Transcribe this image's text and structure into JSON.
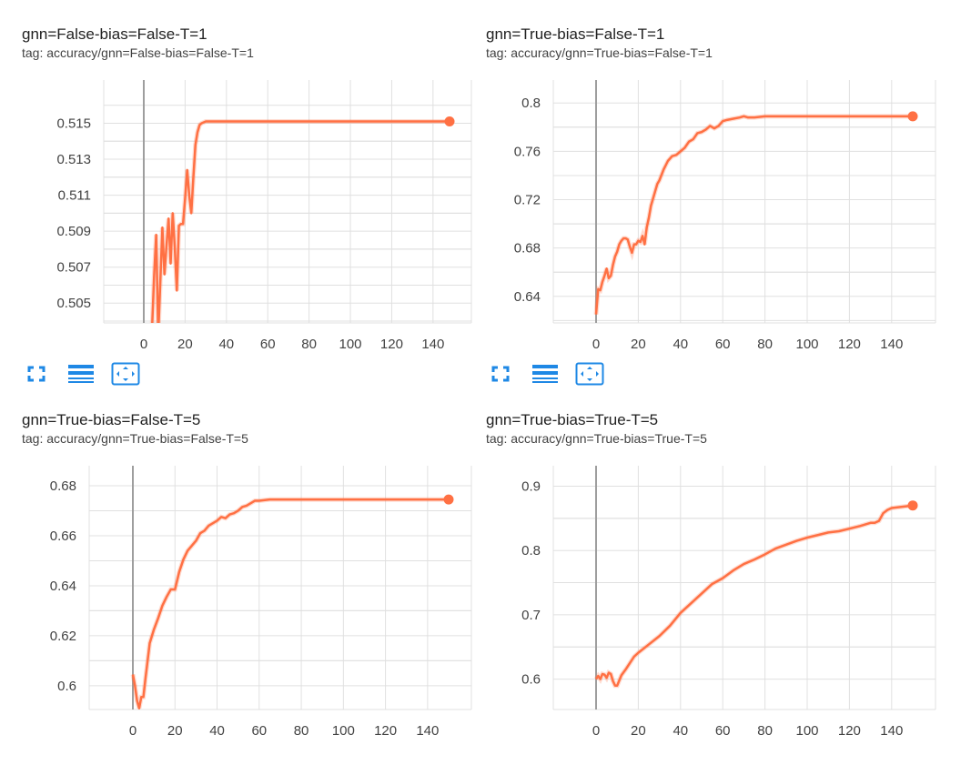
{
  "accent_color": "#ff7043",
  "cards": [
    {
      "title": "gnn=False-bias=False-T=1",
      "tag": "tag: accuracy/gnn=False-bias=False-T=1",
      "has_toolbar": true
    },
    {
      "title": "gnn=True-bias=False-T=1",
      "tag": "tag: accuracy/gnn=True-bias=False-T=1",
      "has_toolbar": true
    },
    {
      "title": "gnn=True-bias=False-T=5",
      "tag": "tag: accuracy/gnn=True-bias=False-T=5",
      "has_toolbar": false
    },
    {
      "title": "gnn=True-bias=True-T=5",
      "tag": "tag: accuracy/gnn=True-bias=True-T=5",
      "has_toolbar": false
    }
  ],
  "toolbar": {
    "icons": [
      "fullscreen-icon",
      "toggle-log-scale-icon",
      "fit-domain-icon"
    ]
  },
  "chart_data": [
    {
      "type": "line",
      "title": "gnn=False-bias=False-T=1",
      "xlim": [
        -20,
        160
      ],
      "ylim": [
        0.5039,
        0.5174
      ],
      "xticks": [
        0,
        20,
        40,
        60,
        80,
        100,
        120,
        140
      ],
      "xtick_labels": [
        "0",
        "20",
        "40",
        "60",
        "80",
        "100",
        "120",
        "140"
      ],
      "yticks": [
        0.505,
        0.507,
        0.509,
        0.511,
        0.513,
        0.515
      ],
      "ytick_labels": [
        "0.505",
        "0.507",
        "0.509",
        "0.511",
        "0.513",
        "0.515"
      ],
      "series": [
        {
          "x": [
            4,
            5,
            6,
            7,
            8,
            9,
            10,
            11,
            12,
            13,
            14,
            15,
            16,
            17,
            18,
            19,
            20,
            21,
            22,
            23,
            24,
            25,
            26,
            27,
            28,
            30,
            32,
            35,
            40,
            50,
            60,
            80,
            100,
            120,
            140,
            148
          ],
          "y": [
            0.5036,
            0.5065,
            0.5088,
            0.5032,
            0.5062,
            0.5092,
            0.5066,
            0.5082,
            0.5097,
            0.5072,
            0.51,
            0.5081,
            0.5057,
            0.5093,
            0.5094,
            0.5094,
            0.5108,
            0.5124,
            0.511,
            0.51,
            0.512,
            0.5138,
            0.5145,
            0.5149,
            0.515,
            0.5151,
            0.5151,
            0.5151,
            0.5151,
            0.5151,
            0.5151,
            0.5151,
            0.5151,
            0.5151,
            0.5151,
            0.5151
          ]
        }
      ]
    },
    {
      "type": "line",
      "title": "gnn=True-bias=False-T=1",
      "xlim": [
        -20,
        160
      ],
      "ylim": [
        0.618,
        0.819
      ],
      "xticks": [
        0,
        20,
        40,
        60,
        80,
        100,
        120,
        140
      ],
      "xtick_labels": [
        "0",
        "20",
        "40",
        "60",
        "80",
        "100",
        "120",
        "140"
      ],
      "yticks": [
        0.64,
        0.68,
        0.72,
        0.76,
        0.8
      ],
      "ytick_labels": [
        "0.64",
        "0.68",
        "0.72",
        "0.76",
        "0.8"
      ],
      "series": [
        {
          "x": [
            0,
            1,
            2,
            3,
            4,
            5,
            6,
            7,
            8,
            9,
            10,
            11,
            12,
            13,
            14,
            15,
            16,
            17,
            18,
            19,
            20,
            21,
            22,
            23,
            24,
            25,
            26,
            27,
            28,
            29,
            30,
            32,
            34,
            36,
            38,
            40,
            42,
            44,
            46,
            48,
            50,
            52,
            54,
            56,
            58,
            60,
            62,
            65,
            68,
            70,
            72,
            75,
            80,
            90,
            100,
            120,
            140,
            150
          ],
          "y": [
            0.625,
            0.646,
            0.645,
            0.652,
            0.657,
            0.663,
            0.655,
            0.657,
            0.666,
            0.673,
            0.677,
            0.683,
            0.686,
            0.688,
            0.688,
            0.687,
            0.681,
            0.676,
            0.683,
            0.683,
            0.686,
            0.685,
            0.69,
            0.683,
            0.697,
            0.705,
            0.715,
            0.721,
            0.727,
            0.733,
            0.736,
            0.745,
            0.752,
            0.756,
            0.757,
            0.76,
            0.763,
            0.768,
            0.77,
            0.775,
            0.776,
            0.778,
            0.781,
            0.779,
            0.781,
            0.785,
            0.786,
            0.787,
            0.788,
            0.789,
            0.788,
            0.788,
            0.789,
            0.789,
            0.789,
            0.789,
            0.789,
            0.789
          ]
        }
      ]
    },
    {
      "type": "line",
      "title": "gnn=True-bias=False-T=5",
      "xlim": [
        -20,
        160
      ],
      "ylim": [
        0.5905,
        0.688
      ],
      "xticks": [
        0,
        20,
        40,
        60,
        80,
        100,
        120,
        140
      ],
      "xtick_labels": [
        "0",
        "20",
        "40",
        "60",
        "80",
        "100",
        "120",
        "140"
      ],
      "yticks": [
        0.6,
        0.62,
        0.64,
        0.66,
        0.68
      ],
      "ytick_labels": [
        "0.6",
        "0.62",
        "0.64",
        "0.66",
        "0.68"
      ],
      "series": [
        {
          "x": [
            0,
            1,
            2,
            3,
            4,
            5,
            6,
            7,
            8,
            10,
            12,
            14,
            16,
            18,
            20,
            22,
            24,
            26,
            28,
            30,
            32,
            34,
            36,
            38,
            40,
            42,
            44,
            46,
            48,
            50,
            52,
            54,
            56,
            58,
            60,
            65,
            70,
            80,
            100,
            120,
            140,
            150
          ],
          "y": [
            0.6045,
            0.6,
            0.594,
            0.591,
            0.5955,
            0.5955,
            0.603,
            0.61,
            0.617,
            0.6225,
            0.627,
            0.632,
            0.6355,
            0.6385,
            0.6385,
            0.6455,
            0.6505,
            0.654,
            0.656,
            0.658,
            0.661,
            0.662,
            0.664,
            0.665,
            0.666,
            0.6675,
            0.667,
            0.6685,
            0.669,
            0.67,
            0.6715,
            0.672,
            0.673,
            0.674,
            0.674,
            0.6745,
            0.6745,
            0.6745,
            0.6745,
            0.6745,
            0.6745,
            0.6745
          ]
        }
      ]
    },
    {
      "type": "line",
      "title": "gnn=True-bias=True-T=5",
      "xlim": [
        -20,
        160
      ],
      "ylim": [
        0.5528,
        0.9318
      ],
      "xticks": [
        0,
        20,
        40,
        60,
        80,
        100,
        120,
        140
      ],
      "xtick_labels": [
        "0",
        "20",
        "40",
        "60",
        "80",
        "100",
        "120",
        "140"
      ],
      "yticks": [
        0.6,
        0.7,
        0.8,
        0.9
      ],
      "ytick_labels": [
        "0.6",
        "0.7",
        "0.8",
        "0.9"
      ],
      "series": [
        {
          "x": [
            0,
            1,
            2,
            3,
            4,
            5,
            6,
            7,
            8,
            9,
            10,
            12,
            14,
            16,
            18,
            20,
            25,
            30,
            35,
            40,
            45,
            50,
            55,
            60,
            65,
            70,
            75,
            80,
            85,
            90,
            95,
            100,
            105,
            110,
            115,
            120,
            125,
            130,
            132,
            134,
            136,
            138,
            140,
            145,
            150
          ],
          "y": [
            0.6,
            0.605,
            0.6,
            0.608,
            0.607,
            0.602,
            0.61,
            0.608,
            0.597,
            0.59,
            0.59,
            0.606,
            0.615,
            0.625,
            0.635,
            0.641,
            0.654,
            0.667,
            0.683,
            0.703,
            0.718,
            0.733,
            0.748,
            0.757,
            0.769,
            0.779,
            0.786,
            0.794,
            0.803,
            0.809,
            0.815,
            0.82,
            0.824,
            0.828,
            0.83,
            0.834,
            0.838,
            0.843,
            0.843,
            0.846,
            0.858,
            0.863,
            0.866,
            0.868,
            0.87
          ]
        }
      ]
    }
  ]
}
